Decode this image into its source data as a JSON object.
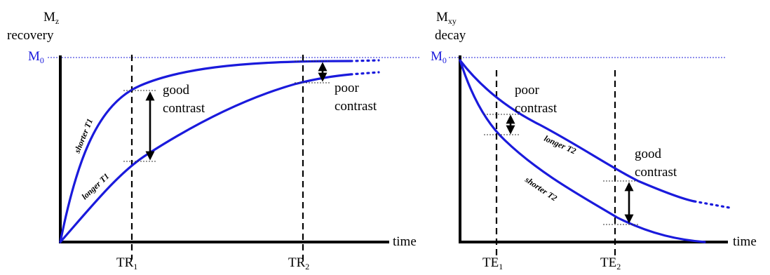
{
  "left": {
    "ylabel_main": "M",
    "ylabel_sub": "z",
    "ylabel_line2": "recovery",
    "m0_main": "M",
    "m0_sub": "0",
    "xlabel": "time",
    "tick1_main": "TR",
    "tick1_sub": "1",
    "tick2_main": "TR",
    "tick2_sub": "2",
    "curve_short": "shorter T1",
    "curve_long": "longer T1",
    "annot_good_1": "good",
    "annot_good_2": "contrast",
    "annot_poor_1": "poor",
    "annot_poor_2": "contrast"
  },
  "right": {
    "ylabel_main": "M",
    "ylabel_sub": "xy",
    "ylabel_line2": "decay",
    "m0_main": "M",
    "m0_sub": "0",
    "xlabel": "time",
    "tick1_main": "TE",
    "tick1_sub": "1",
    "tick2_main": "TE",
    "tick2_sub": "2",
    "curve_short": "shorter T2",
    "curve_long": "longer T2",
    "annot_poor_1": "poor",
    "annot_poor_2": "contrast",
    "annot_good_1": "good",
    "annot_good_2": "contrast"
  },
  "colors": {
    "curve": "#1a1adc",
    "m0_line": "#4a4ae0",
    "axis": "#000000"
  }
}
